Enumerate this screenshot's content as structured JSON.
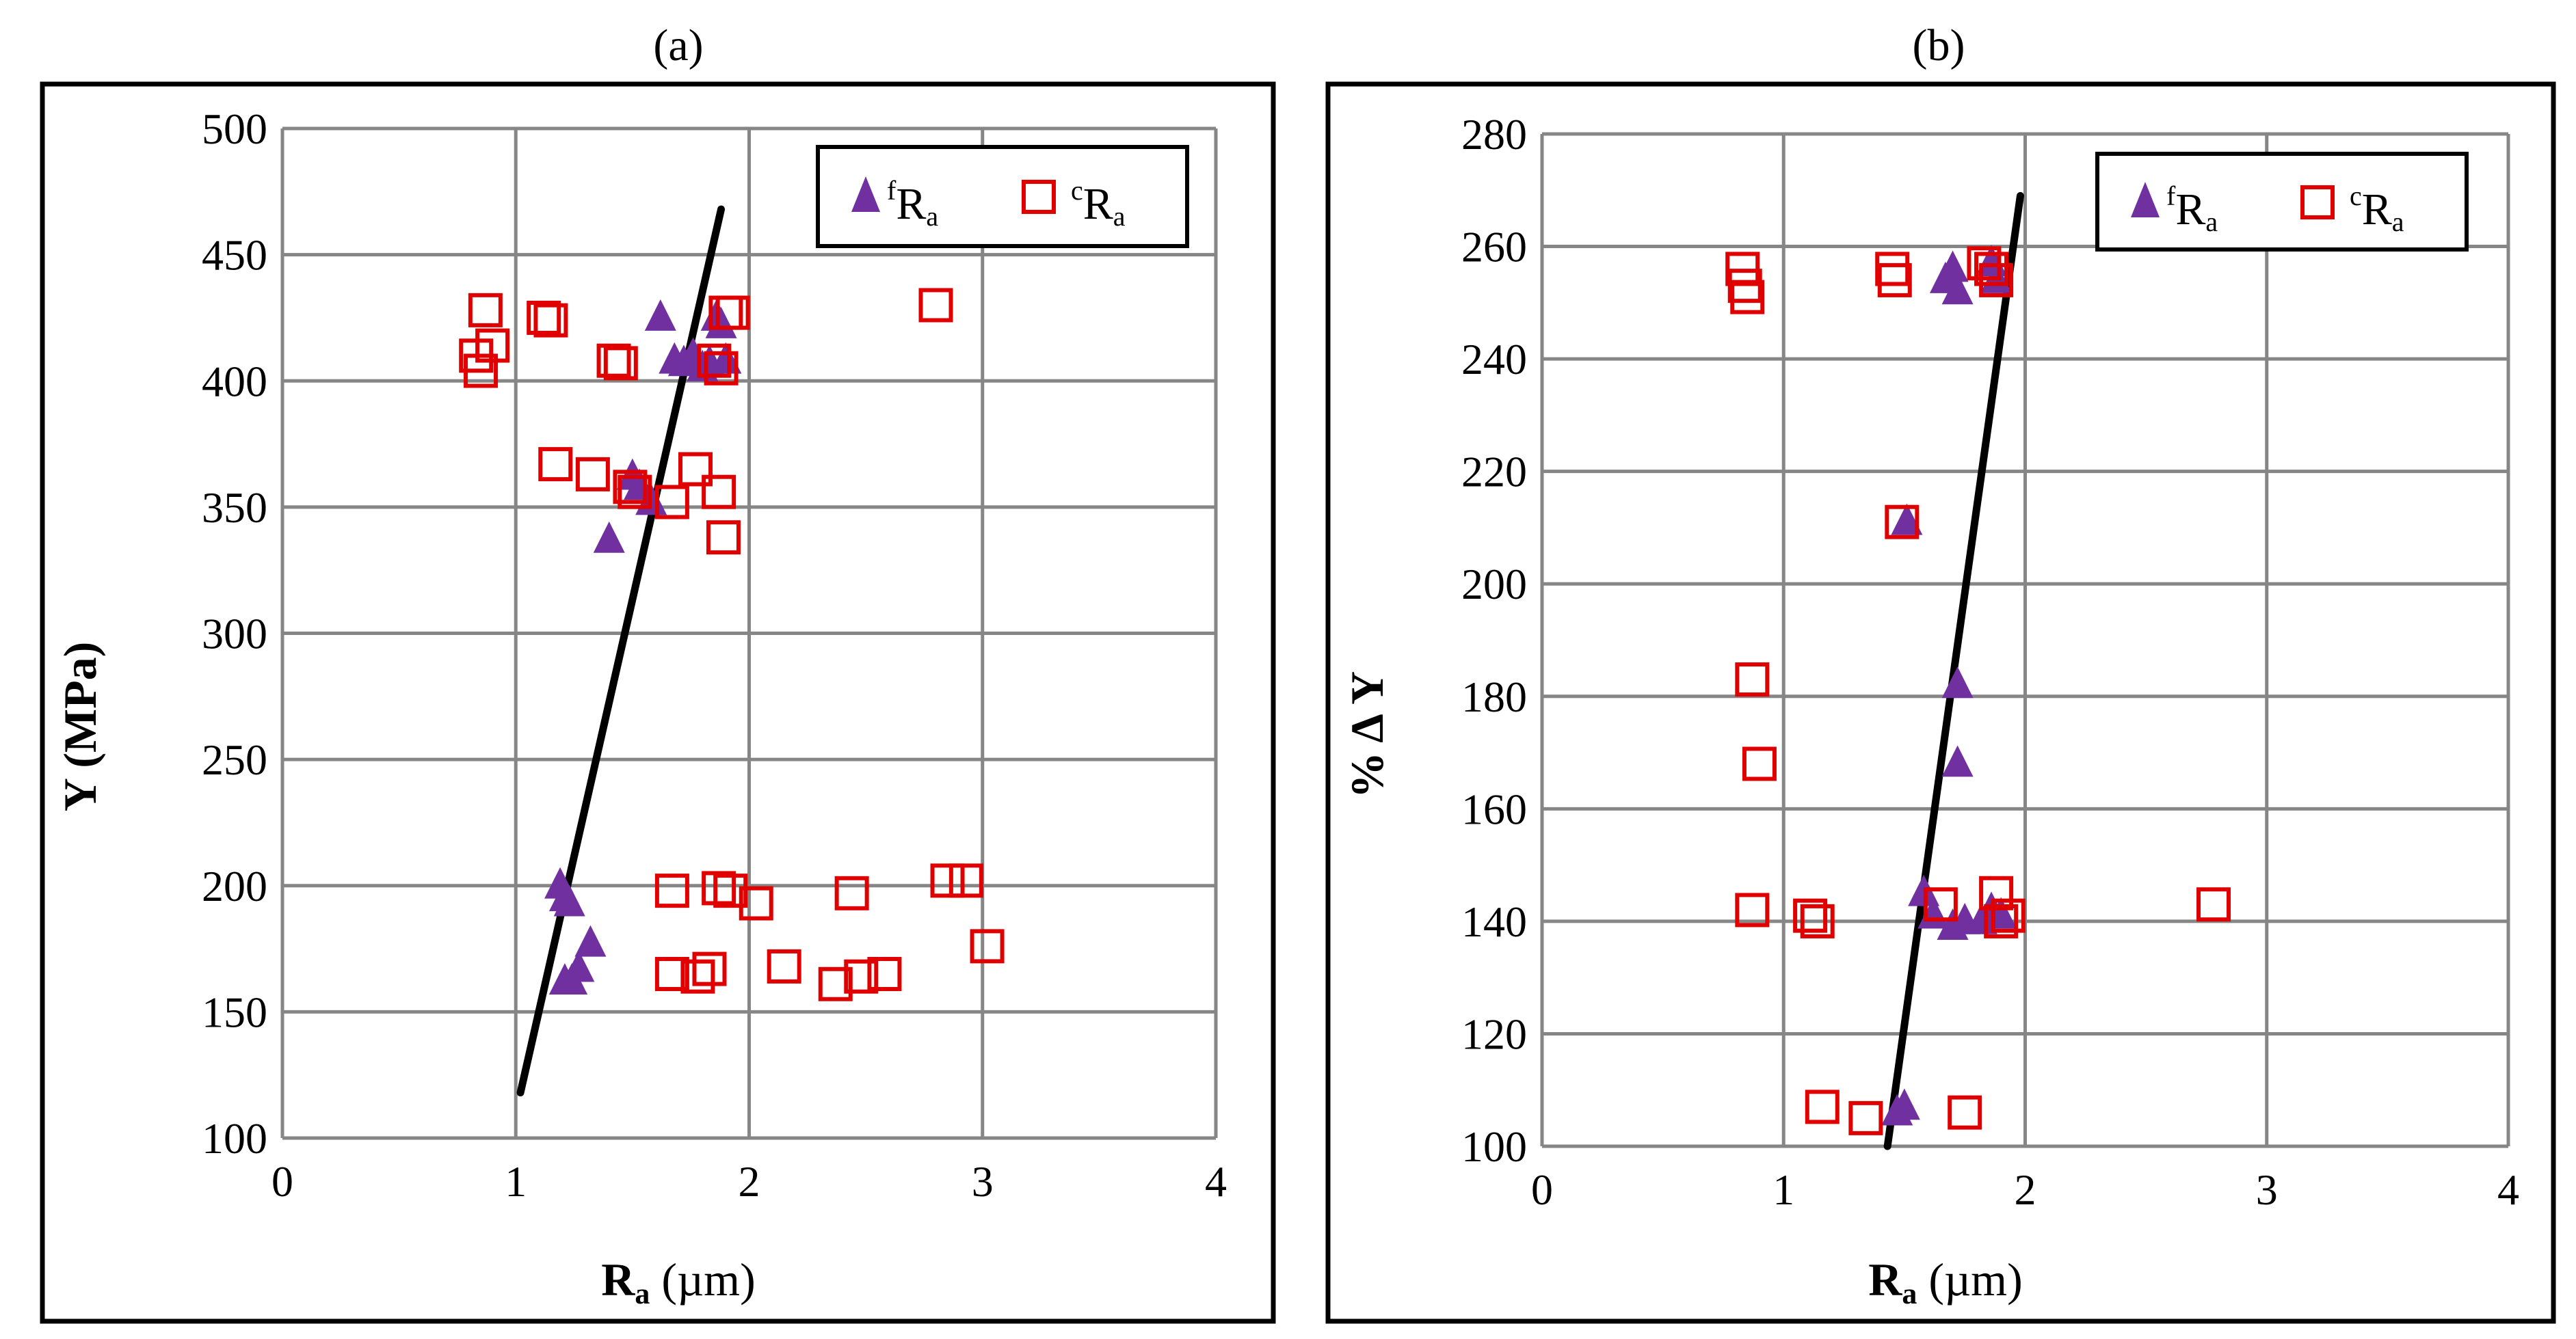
{
  "charts": [
    {
      "id": "a",
      "type": "scatter",
      "title": "(a)",
      "xlabel_main": "R",
      "xlabel_sub": "a",
      "xlabel_rest": " (µm)",
      "ylabel": "Y (MPa)",
      "xlim": [
        0,
        4
      ],
      "ylim": [
        100,
        500
      ],
      "xticks": [
        0,
        1,
        2,
        3,
        4
      ],
      "yticks": [
        100,
        150,
        200,
        250,
        300,
        350,
        400,
        450,
        500
      ],
      "legend": {
        "position": "top-right",
        "entries": [
          {
            "sup": "f",
            "main": "R",
            "sub": "a",
            "marker": "triangle",
            "color": "#7030A0"
          },
          {
            "sup": "c",
            "main": "R",
            "sub": "a",
            "marker": "square",
            "color": "#E00000"
          }
        ]
      },
      "trendline": {
        "from": [
          1.02,
          118
        ],
        "to": [
          1.88,
          468
        ],
        "color": "#000000"
      },
      "series": [
        {
          "name": "fRa",
          "marker": "triangle",
          "color": "#7030A0",
          "points": [
            [
              1.62,
              425
            ],
            [
              1.68,
              408
            ],
            [
              1.72,
              407
            ],
            [
              1.76,
              410
            ],
            [
              1.8,
              405
            ],
            [
              1.83,
              407
            ],
            [
              1.86,
              425
            ],
            [
              1.88,
              422
            ],
            [
              1.9,
              408
            ],
            [
              1.4,
              337
            ],
            [
              1.5,
              362
            ],
            [
              1.53,
              358
            ],
            [
              1.58,
              352
            ],
            [
              1.19,
              200
            ],
            [
              1.21,
              195
            ],
            [
              1.23,
              193
            ],
            [
              1.27,
              167
            ],
            [
              1.32,
              177
            ],
            [
              1.21,
              162
            ],
            [
              1.24,
              162
            ]
          ]
        },
        {
          "name": "cRa",
          "marker": "square",
          "color": "#E00000",
          "points": [
            [
              0.83,
              410
            ],
            [
              0.85,
              404
            ],
            [
              0.87,
              428
            ],
            [
              0.9,
              414
            ],
            [
              1.12,
              425
            ],
            [
              1.15,
              424
            ],
            [
              1.42,
              408
            ],
            [
              1.45,
              407
            ],
            [
              1.85,
              408
            ],
            [
              1.88,
              405
            ],
            [
              1.9,
              427
            ],
            [
              1.93,
              427
            ],
            [
              2.8,
              430
            ],
            [
              1.17,
              367
            ],
            [
              1.33,
              363
            ],
            [
              1.49,
              358
            ],
            [
              1.51,
              356
            ],
            [
              1.67,
              352
            ],
            [
              1.77,
              365
            ],
            [
              1.87,
              356
            ],
            [
              1.89,
              338
            ],
            [
              1.67,
              198
            ],
            [
              1.87,
              199
            ],
            [
              1.92,
              198
            ],
            [
              2.03,
              193
            ],
            [
              2.44,
              197
            ],
            [
              2.85,
              202
            ],
            [
              2.93,
              202
            ],
            [
              3.02,
              176
            ],
            [
              1.67,
              165
            ],
            [
              1.78,
              164
            ],
            [
              1.83,
              167
            ],
            [
              2.15,
              168
            ],
            [
              2.37,
              161
            ],
            [
              2.48,
              164
            ],
            [
              2.58,
              165
            ]
          ]
        }
      ]
    },
    {
      "id": "b",
      "type": "scatter",
      "title": "(b)",
      "xlabel_main": "R",
      "xlabel_sub": "a",
      "xlabel_rest": " (µm)",
      "ylabel": "% Δ Y",
      "xlim": [
        0,
        4
      ],
      "ylim": [
        100,
        280
      ],
      "xticks": [
        0,
        1,
        2,
        3,
        4
      ],
      "yticks": [
        100,
        120,
        140,
        160,
        180,
        200,
        220,
        240,
        260,
        280
      ],
      "legend": {
        "position": "top-right",
        "entries": [
          {
            "sup": "f",
            "main": "R",
            "sub": "a",
            "marker": "triangle",
            "color": "#7030A0"
          },
          {
            "sup": "c",
            "main": "R",
            "sub": "a",
            "marker": "square",
            "color": "#E00000"
          }
        ]
      },
      "trendline": {
        "from": [
          1.43,
          100
        ],
        "to": [
          1.98,
          269
        ],
        "color": "#000000"
      },
      "series": [
        {
          "name": "fRa",
          "marker": "triangle",
          "color": "#7030A0",
          "points": [
            [
              1.67,
              254
            ],
            [
              1.7,
              256
            ],
            [
              1.72,
              252
            ],
            [
              1.86,
              257
            ],
            [
              1.88,
              254
            ],
            [
              1.51,
              211
            ],
            [
              1.72,
              182
            ],
            [
              1.72,
              168
            ],
            [
              1.58,
              145
            ],
            [
              1.62,
              141
            ],
            [
              1.7,
              139
            ],
            [
              1.75,
              140
            ],
            [
              1.82,
              140
            ],
            [
              1.86,
              142
            ],
            [
              1.9,
              141
            ],
            [
              1.47,
              106
            ],
            [
              1.5,
              107
            ]
          ]
        },
        {
          "name": "cRa",
          "marker": "square",
          "color": "#E00000",
          "points": [
            [
              0.83,
              256
            ],
            [
              0.84,
              253
            ],
            [
              0.85,
              251
            ],
            [
              1.45,
              256
            ],
            [
              1.46,
              254
            ],
            [
              1.83,
              257
            ],
            [
              1.86,
              256
            ],
            [
              1.88,
              254
            ],
            [
              1.49,
              211
            ],
            [
              0.87,
              183
            ],
            [
              0.9,
              168
            ],
            [
              0.87,
              142
            ],
            [
              1.11,
              141
            ],
            [
              1.14,
              140
            ],
            [
              1.65,
              143
            ],
            [
              1.88,
              145
            ],
            [
              1.9,
              140
            ],
            [
              1.93,
              141
            ],
            [
              2.78,
              143
            ],
            [
              1.16,
              107
            ],
            [
              1.34,
              105
            ],
            [
              1.75,
              106
            ]
          ]
        }
      ]
    }
  ]
}
